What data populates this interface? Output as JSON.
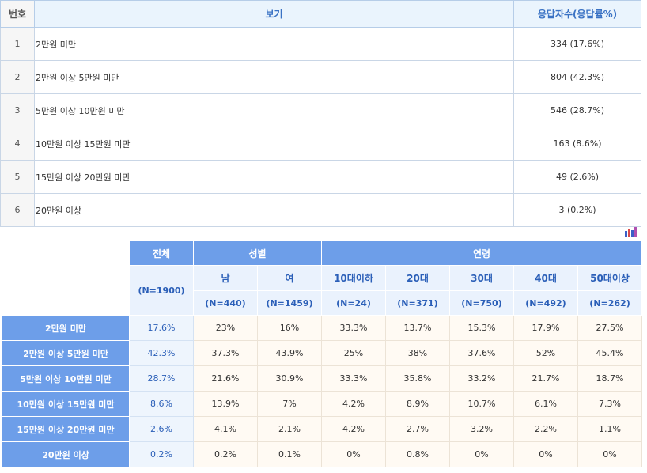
{
  "answers": {
    "headers": {
      "num": "번호",
      "option": "보기",
      "count": "응답자수(응답률%)"
    },
    "rows": [
      {
        "num": "1",
        "option": "2만원 미만",
        "count": "334 (17.6%)"
      },
      {
        "num": "2",
        "option": "2만원 이상 5만원 미만",
        "count": "804 (42.3%)"
      },
      {
        "num": "3",
        "option": "5만원 이상 10만원 미만",
        "count": "546 (28.7%)"
      },
      {
        "num": "4",
        "option": "10만원 이상 15만원 미만",
        "count": "163 (8.6%)"
      },
      {
        "num": "5",
        "option": "15만원 이상 20만원 미만",
        "count": "49 (2.6%)"
      },
      {
        "num": "6",
        "option": "20만원 이상",
        "count": "3 (0.2%)"
      }
    ]
  },
  "chart_icon": "bar-chart-icon",
  "crosstab": {
    "total_label": "전체",
    "total_n": "(N=1900)",
    "groups": [
      {
        "label": "성별"
      },
      {
        "label": "연령"
      }
    ],
    "subheaders": [
      "남",
      "여",
      "10대이하",
      "20대",
      "30대",
      "40대",
      "50대이상"
    ],
    "subheader_n": [
      "(N=440)",
      "(N=1459)",
      "(N=24)",
      "(N=371)",
      "(N=750)",
      "(N=492)",
      "(N=262)"
    ],
    "rows": [
      {
        "label": "2만원 미만",
        "total": "17.6%",
        "values": [
          "23%",
          "16%",
          "33.3%",
          "13.7%",
          "15.3%",
          "17.9%",
          "27.5%"
        ]
      },
      {
        "label": "2만원 이상 5만원 미만",
        "total": "42.3%",
        "values": [
          "37.3%",
          "43.9%",
          "25%",
          "38%",
          "37.6%",
          "52%",
          "45.4%"
        ]
      },
      {
        "label": "5만원 이상 10만원 미만",
        "total": "28.7%",
        "values": [
          "21.6%",
          "30.9%",
          "33.3%",
          "35.8%",
          "33.2%",
          "21.7%",
          "18.7%"
        ]
      },
      {
        "label": "10만원 이상 15만원 미만",
        "total": "8.6%",
        "values": [
          "13.9%",
          "7%",
          "4.2%",
          "8.9%",
          "10.7%",
          "6.1%",
          "7.3%"
        ]
      },
      {
        "label": "15만원 이상 20만원 미만",
        "total": "2.6%",
        "values": [
          "4.1%",
          "2.1%",
          "4.2%",
          "2.7%",
          "3.2%",
          "2.2%",
          "1.1%"
        ]
      },
      {
        "label": "20만원 이상",
        "total": "0.2%",
        "values": [
          "0.2%",
          "0.1%",
          "0%",
          "0.8%",
          "0%",
          "0%",
          "0%"
        ]
      }
    ]
  }
}
